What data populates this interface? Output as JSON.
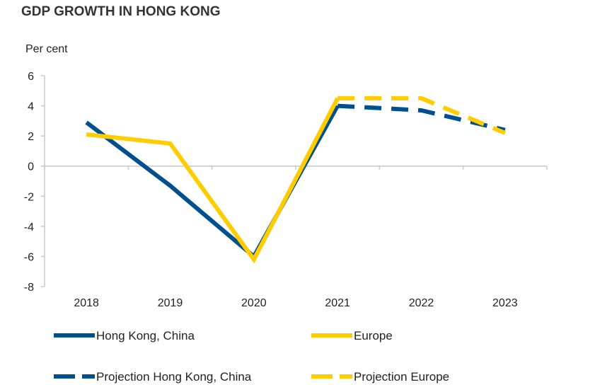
{
  "chart_data": {
    "type": "line",
    "title": "GDP GROWTH IN HONG KONG",
    "ylabel": "Per cent",
    "xlabel": "",
    "categories": [
      "2018",
      "2019",
      "2020",
      "2021",
      "2022",
      "2023"
    ],
    "ylim": [
      -8,
      6
    ],
    "yticks": [
      6,
      4,
      2,
      0,
      -2,
      -4,
      -6,
      -8
    ],
    "grid": false,
    "legend": "bottom",
    "series": [
      {
        "name": "Hong Kong, China",
        "color": "#004f8f",
        "dash": false,
        "values": [
          2.9,
          -1.3,
          -6.0,
          4.0,
          null,
          null
        ]
      },
      {
        "name": "Europe",
        "color": "#ffcc00",
        "dash": false,
        "values": [
          2.1,
          1.5,
          -6.2,
          4.5,
          null,
          null
        ]
      },
      {
        "name": "Projection Hong Kong, China",
        "color": "#004f8f",
        "dash": true,
        "values": [
          null,
          null,
          null,
          4.0,
          3.7,
          2.4
        ]
      },
      {
        "name": "Projection Europe",
        "color": "#ffcc00",
        "dash": true,
        "values": [
          null,
          null,
          null,
          4.5,
          4.5,
          2.2
        ]
      }
    ]
  }
}
